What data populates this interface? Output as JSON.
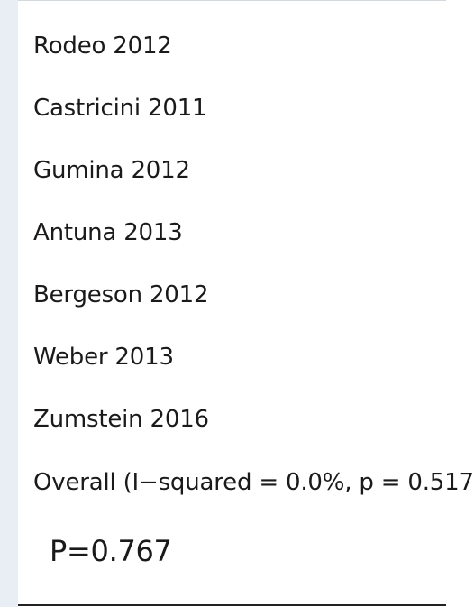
{
  "chart_data": {
    "type": "table",
    "studies": [
      "Rodeo 2012",
      "Castricini 2011",
      "Gumina 2012",
      "Antuna 2013",
      "Bergeson 2012",
      "Weber 2013",
      "Zumstein 2016"
    ],
    "overall_label": "Overall  (I−squared = 0.0%, p = 0.517",
    "p_value_label": "P=0.767"
  },
  "colors": {
    "left_band": "#e8eef3",
    "text": "#1a1a1a",
    "bottom_rule": "#222222"
  }
}
